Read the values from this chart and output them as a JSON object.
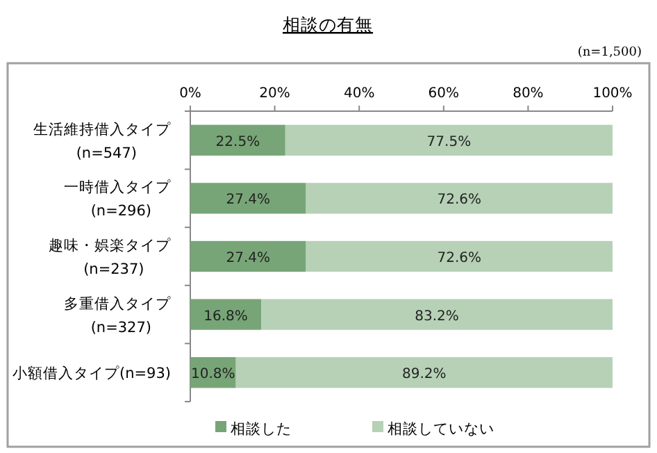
{
  "chart_data": {
    "type": "bar",
    "orientation": "horizontal",
    "stacked": true,
    "title": "相談の有無",
    "annotations": [
      "(n=1,500)"
    ],
    "categories": [
      "生活維持借入タイプ\n(n=547)",
      "一時借入タイプ\n(n=296)",
      "趣味・娯楽タイプ\n(n=237)",
      "多重借入タイプ\n(n=327)",
      "小額借入タイプ(n=93)"
    ],
    "series": [
      {
        "name": "相談した",
        "color": "#77a577",
        "values": [
          22.5,
          27.4,
          27.4,
          16.8,
          10.8
        ],
        "value_labels": [
          "22.5%",
          "27.4%",
          "27.4%",
          "16.8%",
          "10.8%"
        ]
      },
      {
        "name": "相談していない",
        "color": "#b6d1b6",
        "values": [
          77.5,
          72.6,
          72.6,
          83.2,
          89.2
        ],
        "value_labels": [
          "77.5%",
          "72.6%",
          "72.6%",
          "83.2%",
          "89.2%"
        ]
      }
    ],
    "xlim": [
      0,
      100
    ],
    "xticks": [
      {
        "value": 0,
        "label": "0%"
      },
      {
        "value": 20,
        "label": "20%"
      },
      {
        "value": 40,
        "label": "40%"
      },
      {
        "value": 60,
        "label": "60%"
      },
      {
        "value": 80,
        "label": "80%"
      },
      {
        "value": 100,
        "label": "100%"
      }
    ],
    "legend": "bottom",
    "grid": false
  }
}
